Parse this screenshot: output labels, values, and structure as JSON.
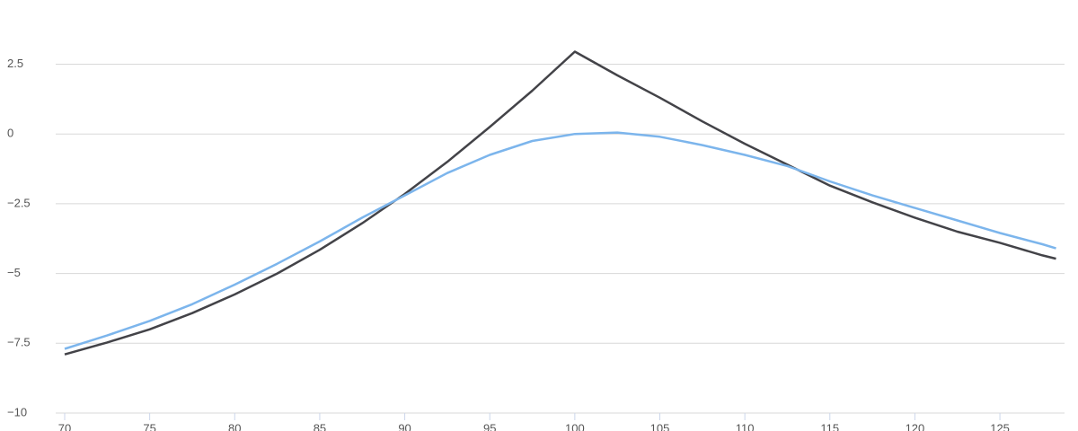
{
  "chart_data": {
    "type": "line",
    "x": [
      70,
      72.5,
      75,
      77.5,
      80,
      82.5,
      85,
      87.5,
      90,
      92.5,
      95,
      97.5,
      100,
      102.5,
      105,
      107.5,
      110,
      112.5,
      115,
      117.5,
      120,
      122.5,
      125,
      127.5,
      128.3
    ],
    "series": [
      {
        "color": "#434348",
        "values": [
          -7.9,
          -7.47,
          -7.0,
          -6.42,
          -5.75,
          -5.0,
          -4.15,
          -3.2,
          -2.15,
          -1.0,
          0.25,
          1.55,
          2.95,
          2.1,
          1.3,
          0.45,
          -0.35,
          -1.1,
          -1.85,
          -2.45,
          -3.0,
          -3.5,
          -3.9,
          -4.35,
          -4.47
        ]
      },
      {
        "color": "#7cb5ec",
        "values": [
          -7.7,
          -7.22,
          -6.7,
          -6.1,
          -5.4,
          -4.65,
          -3.85,
          -3.0,
          -2.2,
          -1.4,
          -0.75,
          -0.25,
          0.0,
          0.05,
          -0.1,
          -0.4,
          -0.75,
          -1.15,
          -1.7,
          -2.2,
          -2.65,
          -3.1,
          -3.55,
          -3.95,
          -4.1
        ]
      }
    ],
    "xlim": [
      70,
      128.8
    ],
    "xticks": [
      70,
      75,
      80,
      85,
      90,
      95,
      100,
      105,
      110,
      115,
      120,
      125
    ],
    "ylim": [
      -10,
      4.8
    ],
    "yticks": [
      {
        "value": -10,
        "label": "−10"
      },
      {
        "value": -7.5,
        "label": "−7.5"
      },
      {
        "value": -5,
        "label": "−5"
      },
      {
        "value": -2.5,
        "label": "−2.5"
      },
      0,
      2.5
    ],
    "grid": true
  }
}
